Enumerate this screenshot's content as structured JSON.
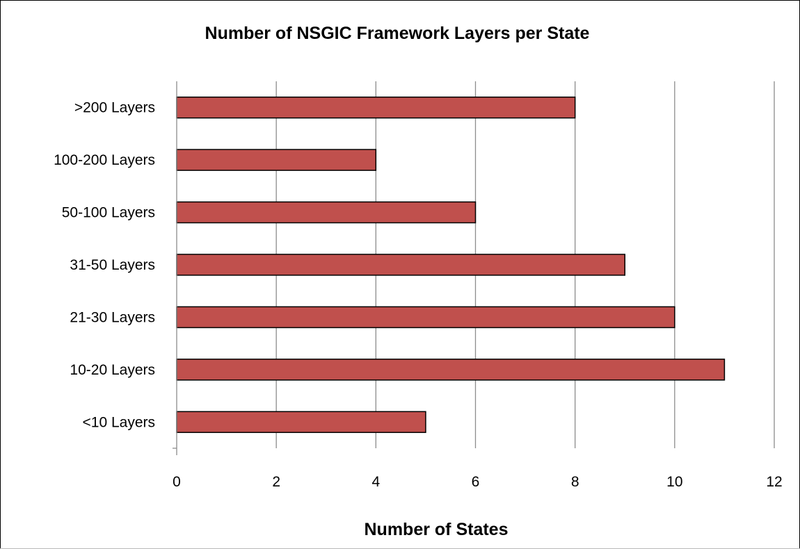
{
  "chart_data": {
    "type": "bar",
    "orientation": "horizontal",
    "title": "Number of NSGIC Framework Layers per State",
    "xlabel": "Number of States",
    "ylabel": "",
    "categories": [
      ">200 Layers",
      "100-200 Layers",
      "50-100 Layers",
      "31-50 Layers",
      "21-30 Layers",
      "10-20 Layers",
      "<10 Layers"
    ],
    "values": [
      8,
      4,
      6,
      9,
      10,
      11,
      5
    ],
    "xlim": [
      0,
      12
    ],
    "xticks": [
      0,
      2,
      4,
      6,
      8,
      10,
      12
    ],
    "grid": true,
    "legend": "none",
    "bar_color": "#C0504D",
    "bar_edge_color": "#000000"
  }
}
